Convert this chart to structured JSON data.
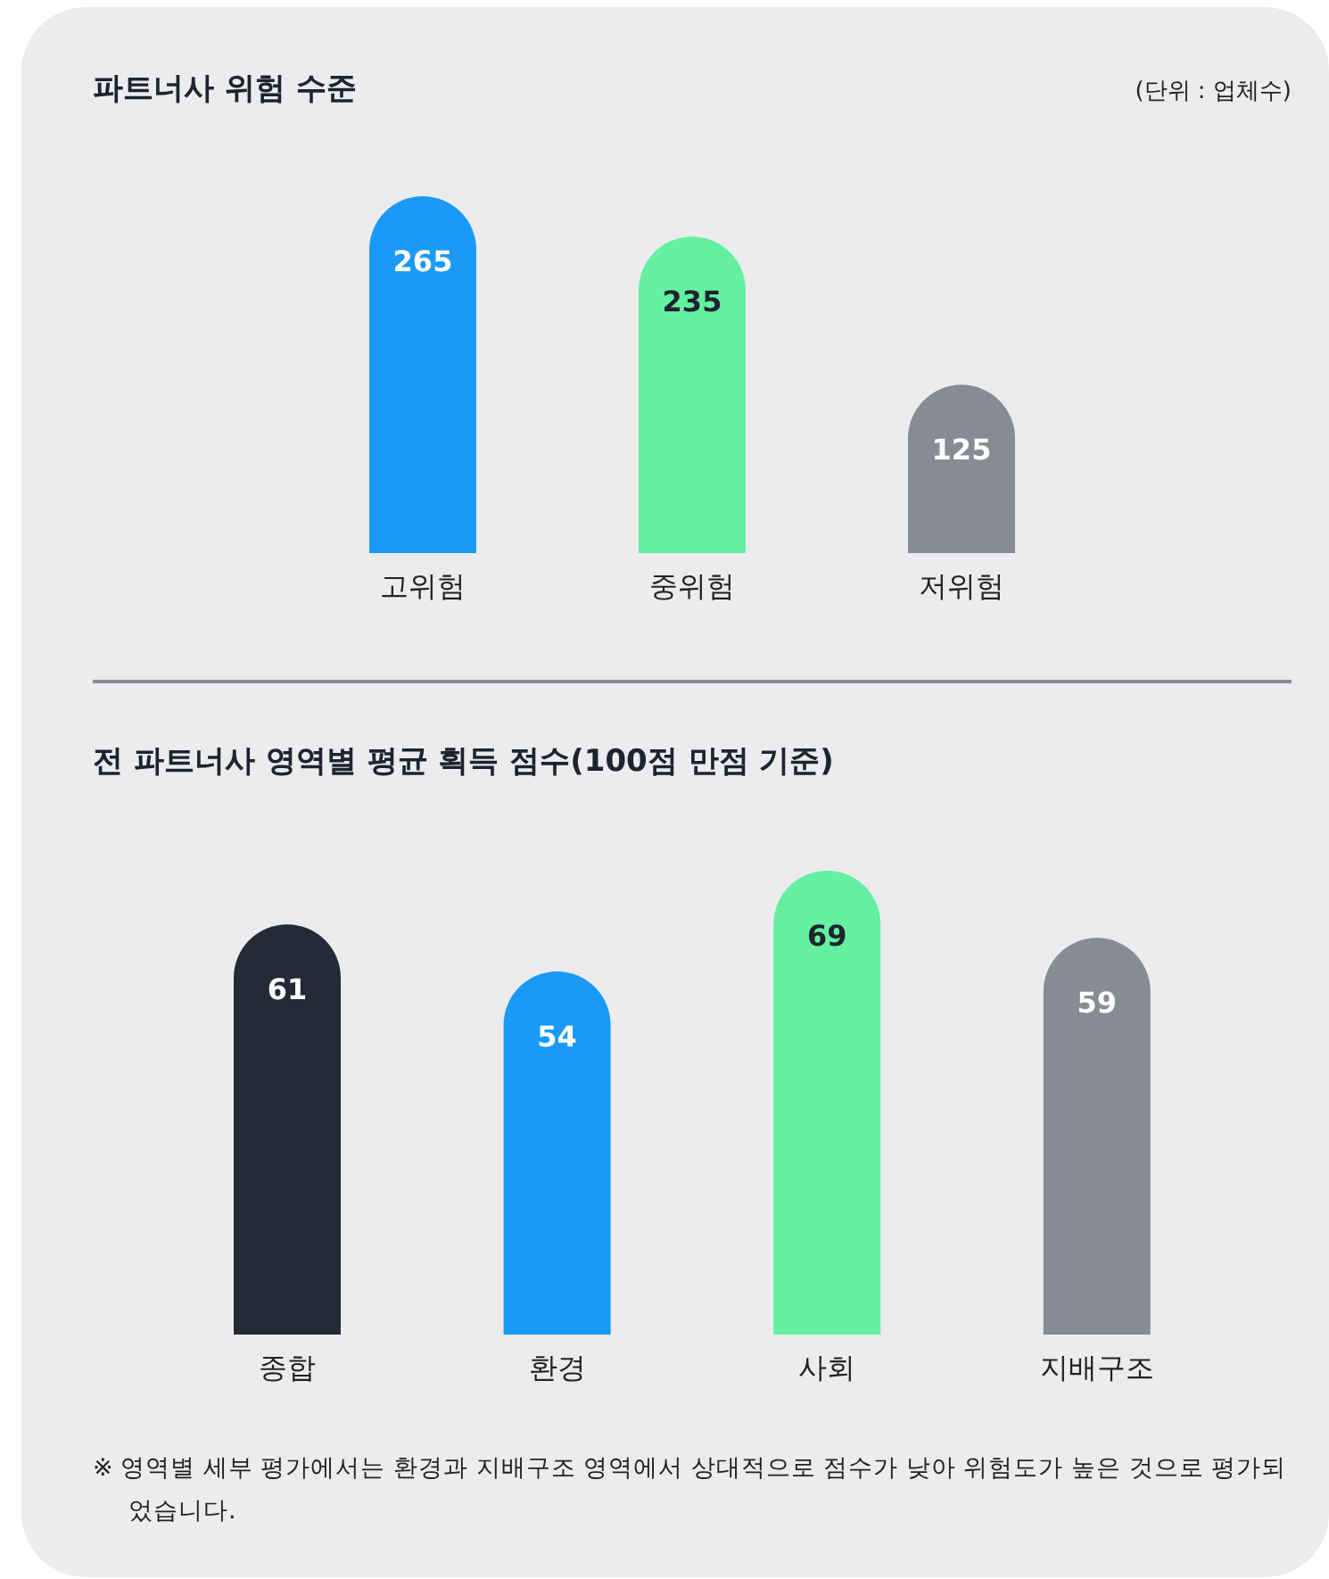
{
  "chart_data": [
    {
      "type": "bar",
      "title": "파트너사 위험 수준",
      "annotations": [
        "(단위 : 업체수)"
      ],
      "categories": [
        "고위험",
        "중위험",
        "저위험"
      ],
      "values": [
        265,
        235,
        125
      ],
      "colors": [
        "#1a9af7",
        "#64f0a0",
        "#878c94"
      ],
      "data_labels": true
    },
    {
      "type": "bar",
      "title": "전 파트너사 영역별 평균 획득 점수(100점 만점 기준)",
      "annotations": [
        "※ 영역별 세부 평가에서는 환경과 지배구조 영역에서 상대적으로 점수가 낮아 위험도가 높은 것으로 평가되었습니다."
      ],
      "categories": [
        "종합",
        "환경",
        "사회",
        "지배구조"
      ],
      "values": [
        61,
        54,
        69,
        59
      ],
      "colors": [
        "#222b36",
        "#1a9af7",
        "#64f0a0",
        "#878c94"
      ],
      "data_labels": true
    }
  ]
}
